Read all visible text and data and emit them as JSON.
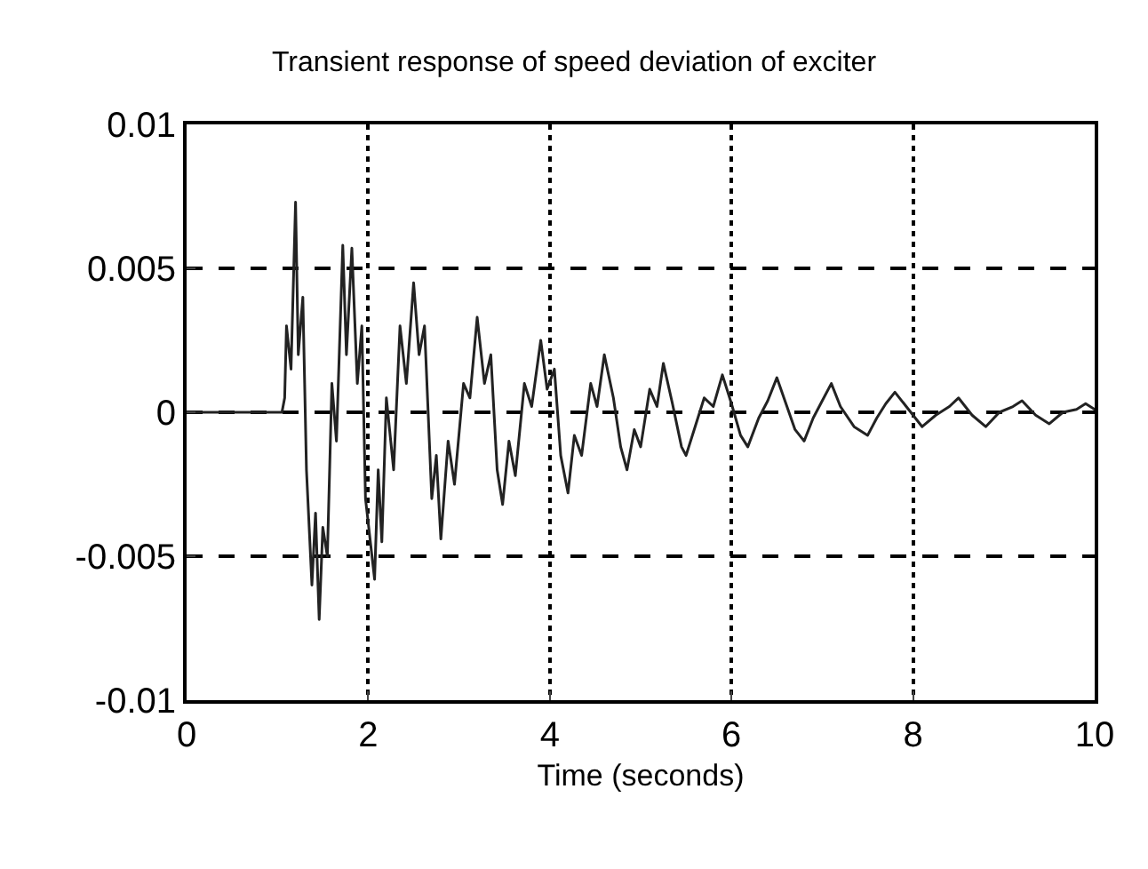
{
  "chart_data": {
    "type": "line",
    "title": "Transient response of speed deviation of exciter",
    "xlabel": "Time (seconds)",
    "x": [
      0,
      1.05,
      1.08,
      1.1,
      1.15,
      1.2,
      1.23,
      1.28,
      1.32,
      1.38,
      1.42,
      1.46,
      1.5,
      1.55,
      1.6,
      1.65,
      1.72,
      1.76,
      1.82,
      1.88,
      1.93,
      1.97,
      2.07,
      2.11,
      2.15,
      2.2,
      2.28,
      2.35,
      2.42,
      2.5,
      2.56,
      2.62,
      2.7,
      2.75,
      2.8,
      2.88,
      2.95,
      3.05,
      3.12,
      3.2,
      3.28,
      3.35,
      3.42,
      3.48,
      3.55,
      3.62,
      3.72,
      3.8,
      3.9,
      3.97,
      4.05,
      4.12,
      4.2,
      4.27,
      4.35,
      4.45,
      4.52,
      4.6,
      4.7,
      4.78,
      4.85,
      4.93,
      5.0,
      5.1,
      5.18,
      5.25,
      5.35,
      5.45,
      5.5,
      5.6,
      5.7,
      5.8,
      5.9,
      6.0,
      6.1,
      6.18,
      6.3,
      6.4,
      6.5,
      6.6,
      6.7,
      6.8,
      6.9,
      7.0,
      7.1,
      7.2,
      7.35,
      7.5,
      7.6,
      7.7,
      7.8,
      7.95,
      8.1,
      8.25,
      8.4,
      8.5,
      8.65,
      8.8,
      8.95,
      9.1,
      9.2,
      9.35,
      9.5,
      9.65,
      9.8,
      9.9,
      10
    ],
    "series": [
      {
        "color": "#222222",
        "values": [
          0,
          0,
          0.0005,
          0.003,
          0.0015,
          0.0073,
          0.002,
          0.004,
          -0.002,
          -0.006,
          -0.0035,
          -0.0072,
          -0.004,
          -0.005,
          0.001,
          -0.001,
          0.0058,
          0.002,
          0.0057,
          0.001,
          0.003,
          -0.003,
          -0.0058,
          -0.002,
          -0.0045,
          0.0005,
          -0.002,
          0.003,
          0.001,
          0.0045,
          0.002,
          0.003,
          -0.003,
          -0.0015,
          -0.0044,
          -0.001,
          -0.0025,
          0.001,
          0.0005,
          0.0033,
          0.001,
          0.002,
          -0.002,
          -0.0032,
          -0.001,
          -0.0022,
          0.001,
          0.0002,
          0.0025,
          0.0008,
          0.0015,
          -0.0015,
          -0.0028,
          -0.0008,
          -0.0015,
          0.001,
          0.0002,
          0.002,
          0.0005,
          -0.0012,
          -0.002,
          -0.0006,
          -0.0012,
          0.0008,
          0.0002,
          0.0017,
          0.0003,
          -0.0012,
          -0.0015,
          -0.0005,
          0.0005,
          0.0002,
          0.0013,
          0.0003,
          -0.0008,
          -0.0012,
          -0.0002,
          0.0004,
          0.0012,
          0.0003,
          -0.0006,
          -0.001,
          -0.0002,
          0.0004,
          0.001,
          0.0002,
          -0.0005,
          -0.0008,
          -0.0002,
          0.0003,
          0.0007,
          0.0001,
          -0.0005,
          -0.0001,
          0.0002,
          0.0005,
          -0.0001,
          -0.0005,
          0,
          0.0002,
          0.0004,
          -0.0001,
          -0.0004,
          0,
          0.0001,
          0.0003,
          0.0001
        ]
      }
    ],
    "xlim": [
      0,
      10
    ],
    "xticks": [
      0,
      2,
      4,
      6,
      8,
      10
    ],
    "ylim": [
      -0.01,
      0.01
    ],
    "yticks": [
      -0.01,
      -0.005,
      0,
      0.005,
      0.01
    ],
    "grid": true,
    "line_style": "solid",
    "marker": "none"
  }
}
